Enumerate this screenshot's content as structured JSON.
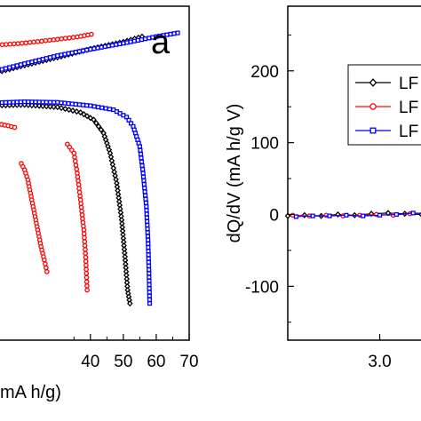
{
  "chart_data": [
    {
      "type": "scatter",
      "panel_label": "a",
      "xlabel": "mA h/g)",
      "ylabel": "",
      "xlim": [
        12,
        70
      ],
      "x_ticks": [
        40,
        50,
        60,
        70
      ],
      "x_tick_labels": [
        "40",
        "50",
        "60",
        "70"
      ],
      "ylim": [
        0,
        1
      ],
      "grid": false,
      "colors": {
        "black": "#000000",
        "red": "#ff0000",
        "blue": "#0000ff"
      },
      "series": [
        {
          "color": "#ff0000",
          "marker": "circle",
          "curves": [
            {
              "points": [
                [
                  12,
                  0.884
                ],
                [
                  18,
                  0.888
                ],
                [
                  24,
                  0.894
                ],
                [
                  30,
                  0.901
                ],
                [
                  36,
                  0.908
                ],
                [
                  40.3,
                  0.916
                ]
              ]
            },
            {
              "points": [
                [
                  12,
                  0.648
                ],
                [
                  15,
                  0.642
                ],
                [
                  17,
                  0.637
                ]
              ]
            },
            {
              "points": [
                [
                  19,
                  0.529
                ],
                [
                  20,
                  0.51
                ],
                [
                  21,
                  0.48
                ],
                [
                  22,
                  0.43
                ],
                [
                  23,
                  0.38
                ],
                [
                  24,
                  0.33
                ],
                [
                  25,
                  0.28
                ],
                [
                  26,
                  0.24
                ],
                [
                  26.8,
                  0.205
                ]
              ]
            },
            {
              "points": [
                [
                  33,
                  0.587
                ],
                [
                  35,
                  0.56
                ],
                [
                  36,
                  0.5
                ],
                [
                  37,
                  0.42
                ],
                [
                  38,
                  0.33
                ],
                [
                  38.5,
                  0.26
                ],
                [
                  38.8,
                  0.2
                ],
                [
                  39,
                  0.15
                ]
              ]
            }
          ]
        },
        {
          "color": "#000000",
          "marker": "diamond",
          "curves": [
            {
              "points": [
                [
                  12,
                  0.803
                ],
                [
                  20,
                  0.823
                ],
                [
                  30,
                  0.847
                ],
                [
                  40,
                  0.872
                ],
                [
                  50,
                  0.893
                ],
                [
                  55.7,
                  0.909
                ]
              ]
            },
            {
              "points": [
                [
                  12,
                  0.703
                ],
                [
                  20,
                  0.705
                ],
                [
                  30,
                  0.698
                ],
                [
                  37,
                  0.682
                ],
                [
                  41,
                  0.66
                ],
                [
                  44,
                  0.62
                ],
                [
                  46,
                  0.56
                ],
                [
                  48,
                  0.47
                ],
                [
                  49.5,
                  0.36
                ],
                [
                  50.5,
                  0.25
                ],
                [
                  51.3,
                  0.15
                ],
                [
                  52,
                  0.11
                ]
              ]
            }
          ]
        },
        {
          "color": "#0000ff",
          "marker": "square",
          "curves": [
            {
              "points": [
                [
                  12,
                  0.808
                ],
                [
                  20,
                  0.828
                ],
                [
                  30,
                  0.852
                ],
                [
                  40,
                  0.871
                ],
                [
                  50,
                  0.889
                ],
                [
                  60,
                  0.909
                ],
                [
                  66.5,
                  0.92
                ]
              ]
            },
            {
              "points": [
                [
                  12,
                  0.711
                ],
                [
                  20,
                  0.714
                ],
                [
                  30,
                  0.712
                ],
                [
                  40,
                  0.702
                ],
                [
                  47,
                  0.69
                ],
                [
                  51,
                  0.668
                ],
                [
                  53,
                  0.64
                ],
                [
                  55,
                  0.58
                ],
                [
                  56,
                  0.5
                ],
                [
                  57,
                  0.4
                ],
                [
                  57.5,
                  0.3
                ],
                [
                  57.8,
                  0.2
                ],
                [
                  58,
                  0.11
                ]
              ]
            }
          ]
        }
      ]
    },
    {
      "type": "line",
      "xlabel": "",
      "ylabel": "dQ/dV (mA h/g V)",
      "ylim": [
        -175,
        290
      ],
      "y_ticks": [
        -100,
        0,
        100,
        200
      ],
      "y_tick_labels": [
        "-100",
        "0",
        "100",
        "200"
      ],
      "x_ticks": [
        3.0
      ],
      "x_tick_labels": [
        "3.0"
      ],
      "xlim": [
        2.45,
        3.3
      ],
      "grid": false,
      "legend_placement": "top-right",
      "legend": [
        {
          "label": "LF",
          "color": "#000000",
          "marker": "diamond"
        },
        {
          "label": "LF",
          "color": "#ff0000",
          "marker": "circle"
        },
        {
          "label": "LF",
          "color": "#0000ff",
          "marker": "square"
        }
      ],
      "series": [
        {
          "color": "#000000",
          "marker": "diamond",
          "x": [
            2.45,
            2.55,
            2.65,
            2.75,
            2.85,
            2.95,
            3.05,
            3.15,
            3.25
          ],
          "y": [
            -2,
            -1,
            -2,
            0,
            -1,
            1,
            2,
            1,
            0
          ]
        },
        {
          "color": "#ff0000",
          "marker": "circle",
          "x": [
            2.48,
            2.58,
            2.68,
            2.78,
            2.88,
            2.98,
            3.08,
            3.18,
            3.28
          ],
          "y": [
            -1,
            -2,
            -1,
            -2,
            -1,
            0,
            -1,
            1,
            2
          ]
        },
        {
          "color": "#0000ff",
          "marker": "square",
          "x": [
            2.5,
            2.6,
            2.7,
            2.8,
            2.9,
            3.0,
            3.1,
            3.2,
            3.3
          ],
          "y": [
            -3,
            -2,
            -2,
            -1,
            -2,
            -1,
            0,
            2,
            1
          ]
        }
      ]
    }
  ]
}
